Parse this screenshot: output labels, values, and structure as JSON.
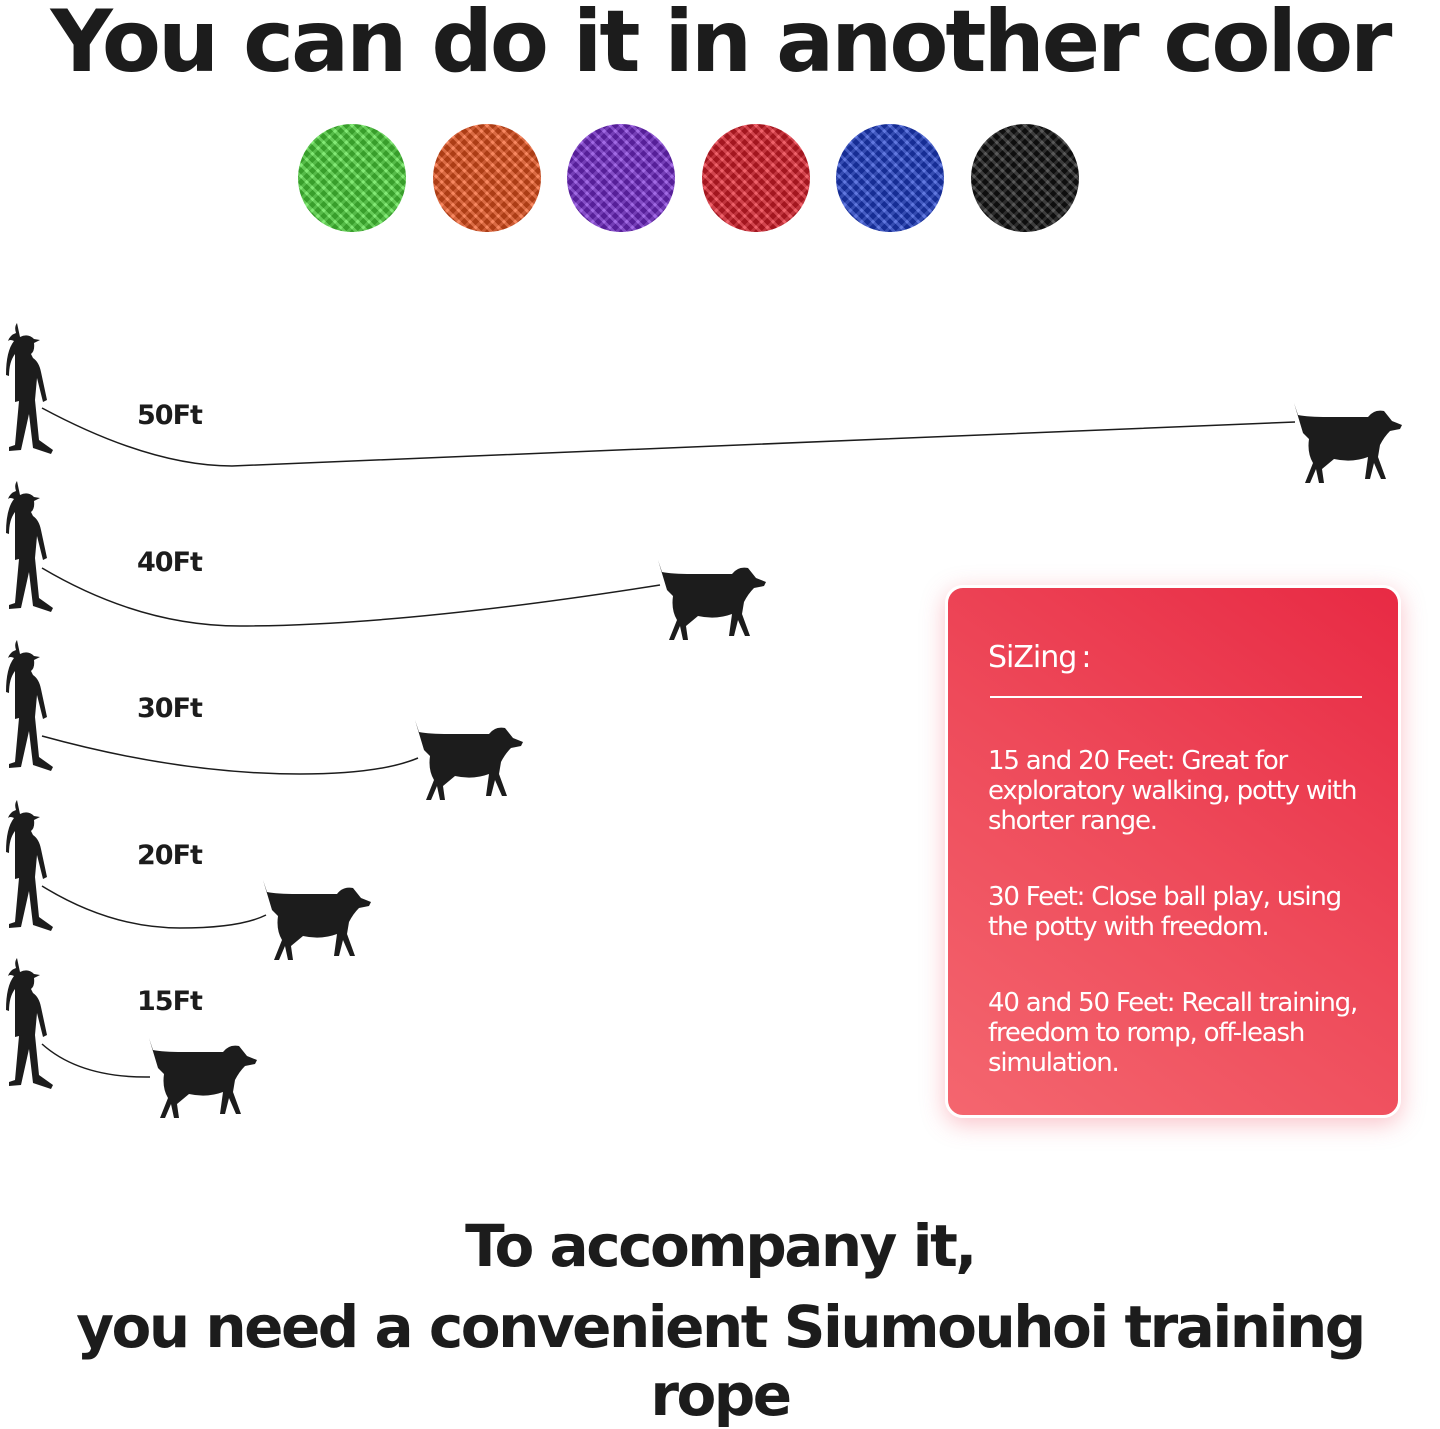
{
  "headline": "You can do it in another color",
  "colors": [
    {
      "name": "green",
      "hex": "#4fe03c"
    },
    {
      "name": "orange",
      "hex": "#f4561e"
    },
    {
      "name": "purple",
      "hex": "#7a2cd8"
    },
    {
      "name": "red",
      "hex": "#e8202c"
    },
    {
      "name": "blue",
      "hex": "#1f40d2"
    },
    {
      "name": "black",
      "hex": "#141414"
    }
  ],
  "lengths": [
    "50Ft",
    "40Ft",
    "30Ft",
    "20Ft",
    "15Ft"
  ],
  "sizing": {
    "title": "SiZing :",
    "items": [
      "15 and 20 Feet: Great for exploratory walking, potty with shorter range.",
      "30 Feet: Close ball play, using the potty with freedom.",
      "40 and 50 Feet: Recall training, freedom to romp, off-leash simulation."
    ]
  },
  "footer": {
    "line1": "To accompany it,",
    "line2": "you need a convenient Siumouhoi training rope"
  }
}
